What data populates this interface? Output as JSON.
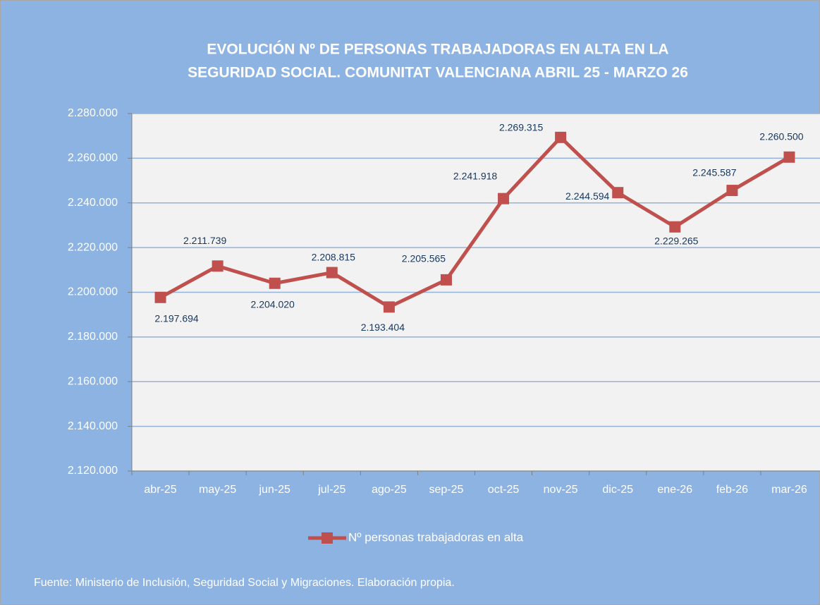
{
  "chart_data": {
    "type": "line",
    "title": [
      "EVOLUCIÓN Nº DE PERSONAS TRABAJADORAS EN ALTA EN LA",
      "SEGURIDAD SOCIAL. COMUNITAT VALENCIANA ABRIL 25 - MARZO 26"
    ],
    "categories": [
      "abr-25",
      "may-25",
      "jun-25",
      "jul-25",
      "ago-25",
      "sep-25",
      "oct-25",
      "nov-25",
      "dic-25",
      "ene-26",
      "feb-26",
      "mar-26"
    ],
    "series": [
      {
        "name": "Nº personas trabajadoras en alta",
        "color": "#c0504d",
        "values": [
          2197694,
          2211739,
          2204020,
          2208815,
          2193404,
          2205565,
          2241918,
          2269315,
          2244594,
          2229265,
          2245587,
          2260500
        ],
        "value_labels": [
          "2.197.694",
          "2.211.739",
          "2.204.020",
          "2.208.815",
          "2.193.404",
          "2.205.565",
          "2.241.918",
          "2.269.315",
          "2.244.594",
          "2.229.265",
          "2.245.587",
          "2.260.500"
        ]
      }
    ],
    "ylim": [
      2120000,
      2280000
    ],
    "yticks": [
      {
        "value": 2120000,
        "label": "2.120.000"
      },
      {
        "value": 2140000,
        "label": "2.140.000"
      },
      {
        "value": 2160000,
        "label": "2.160.000"
      },
      {
        "value": 2180000,
        "label": "2.180.000"
      },
      {
        "value": 2200000,
        "label": "2.200.000"
      },
      {
        "value": 2220000,
        "label": "2.220.000"
      },
      {
        "value": 2240000,
        "label": "2.240.000"
      },
      {
        "value": 2260000,
        "label": "2.260.000"
      },
      {
        "value": 2280000,
        "label": "2.280.000"
      }
    ],
    "grid": true,
    "legend": "bottom",
    "source": "Fuente: Ministerio de Inclusión, Seguridad Social y Migraciones. Elaboración propia."
  }
}
